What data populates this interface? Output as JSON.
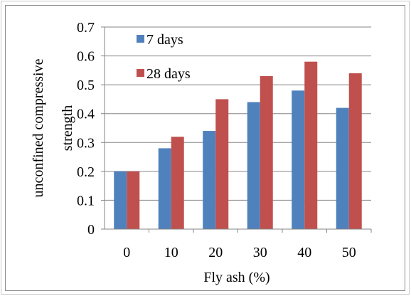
{
  "chart_data": {
    "type": "bar",
    "categories": [
      "0",
      "10",
      "20",
      "30",
      "40",
      "50"
    ],
    "series": [
      {
        "name": "7 days",
        "values": [
          0.2,
          0.28,
          0.34,
          0.44,
          0.48,
          0.42
        ],
        "color": "#4f81bd"
      },
      {
        "name": "28 days",
        "values": [
          0.2,
          0.32,
          0.45,
          0.53,
          0.58,
          0.54
        ],
        "color": "#c0504d"
      }
    ],
    "title": "",
    "xlabel": "Fly ash (%)",
    "ylabel_lines": [
      "unconfined compressive",
      "strength"
    ],
    "ylim": [
      0,
      0.7
    ],
    "yticks": [
      "0",
      "0.1",
      "0.2",
      "0.3",
      "0.4",
      "0.5",
      "0.6",
      "0.7"
    ],
    "grid": true,
    "legend": "top-left inside"
  }
}
